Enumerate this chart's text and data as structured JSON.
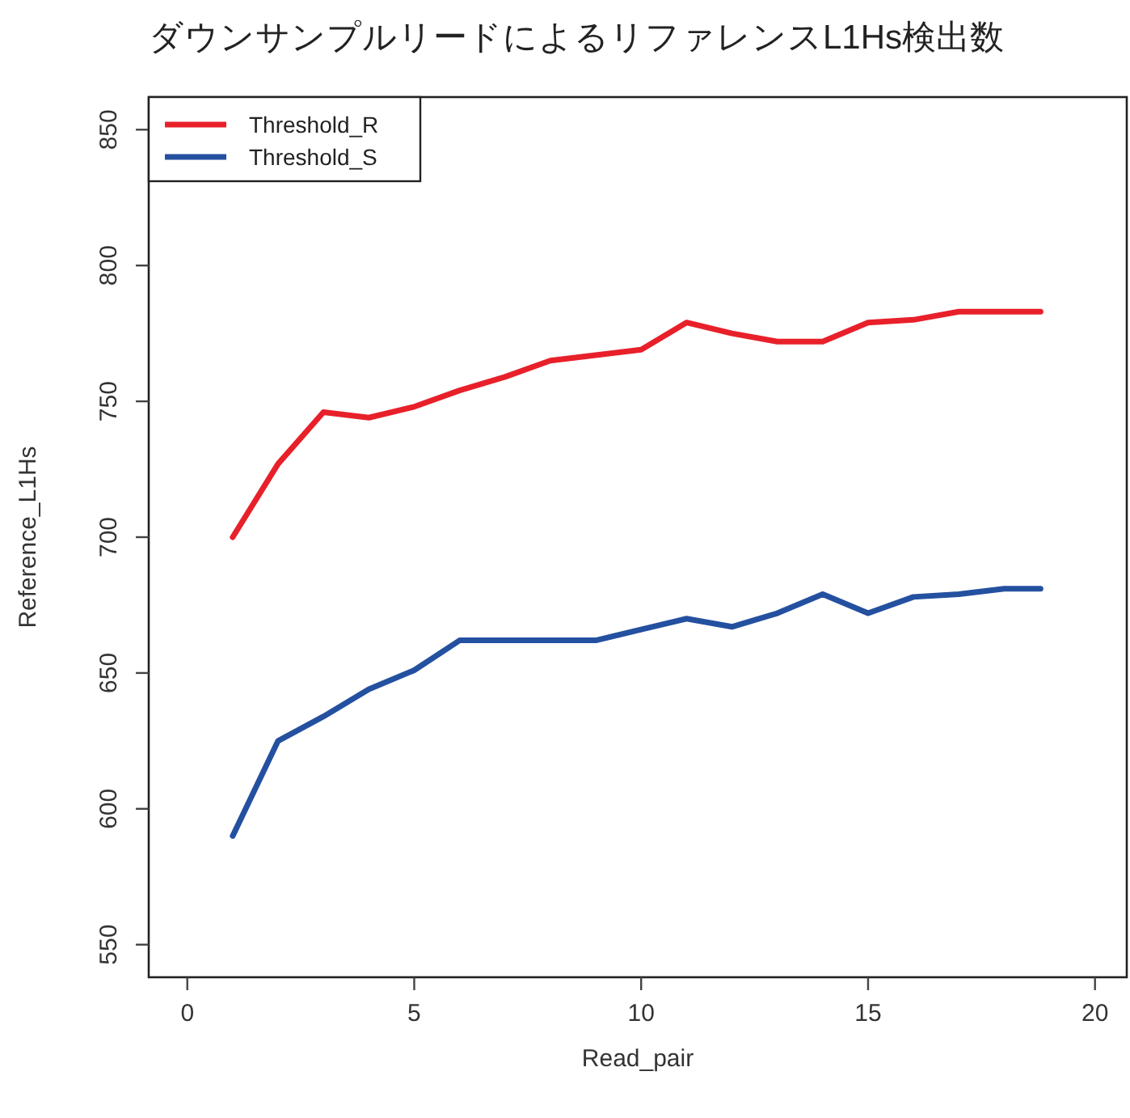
{
  "chart_data": {
    "type": "line",
    "title": "ダウンサンプルリードによるリファレンスL1Hs検出数",
    "xlabel": "Read_pair",
    "ylabel": "Reference_L1Hs",
    "x": [
      1,
      2,
      3,
      4,
      5,
      6,
      7,
      8,
      9,
      10,
      11,
      12,
      13,
      14,
      15,
      16,
      17,
      18,
      18.8
    ],
    "series": [
      {
        "name": "Threshold_R",
        "color": "#e8202a",
        "values": [
          700,
          727,
          746,
          744,
          748,
          754,
          759,
          765,
          767,
          769,
          779,
          775,
          772,
          772,
          779,
          780,
          783,
          783,
          783
        ]
      },
      {
        "name": "Threshold_S",
        "color": "#2450a0",
        "values": [
          590,
          625,
          634,
          644,
          651,
          662,
          662,
          662,
          662,
          666,
          670,
          667,
          672,
          679,
          672,
          678,
          679,
          681,
          681
        ]
      }
    ],
    "xlim": [
      -0.85,
      20.7
    ],
    "ylim": [
      538,
      862
    ],
    "xticks": [
      0,
      5,
      10,
      15,
      20
    ],
    "yticks": [
      550,
      600,
      650,
      700,
      750,
      800,
      850
    ],
    "legend": "top left",
    "grid": false,
    "line_style": "solid",
    "marker": "none"
  }
}
